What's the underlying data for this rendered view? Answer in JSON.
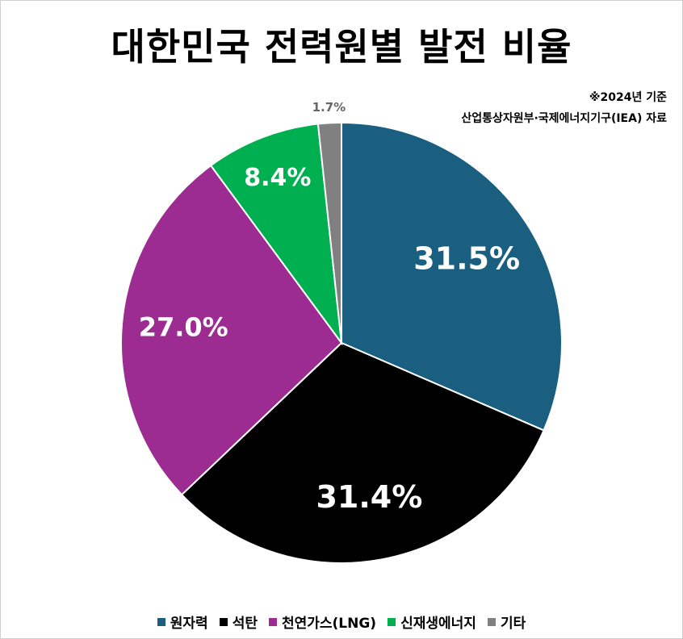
{
  "chart_data": {
    "type": "pie",
    "title": "대한민국 전력원별 발전 비율",
    "notes": [
      "※2024년 기준",
      "산업통상자원부·국제에너지기구(IEA) 자료"
    ],
    "categories": [
      "원자력",
      "석탄",
      "천연가스(LNG)",
      "신재생에너지",
      "기타"
    ],
    "values": [
      31.5,
      31.4,
      27.0,
      8.4,
      1.7
    ],
    "labels": [
      "31.5%",
      "31.4%",
      "27.0%",
      "8.4%",
      "1.7%"
    ],
    "colors": [
      "#1a5f80",
      "#000000",
      "#9c2b92",
      "#00b050",
      "#808080"
    ],
    "start_angle": "12 o'clock",
    "direction": "clockwise",
    "legend_position": "bottom"
  }
}
